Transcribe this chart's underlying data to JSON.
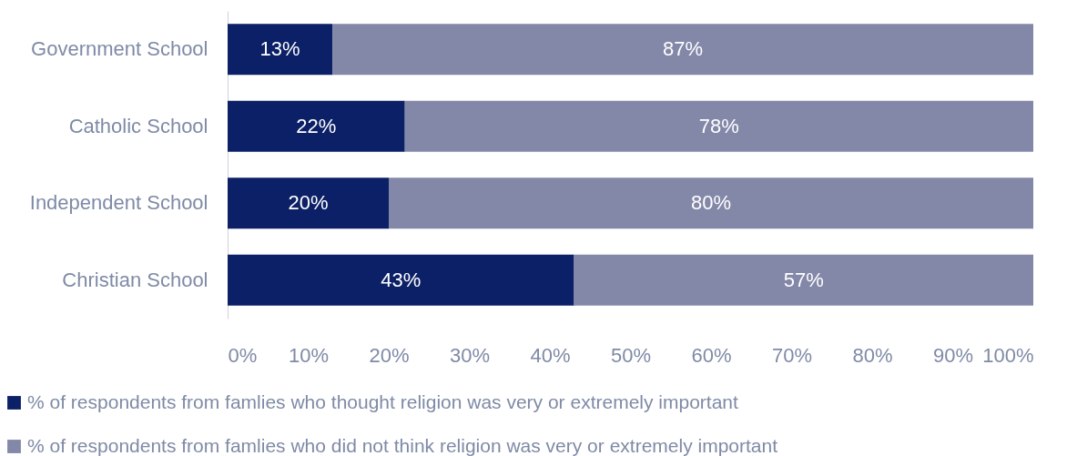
{
  "chart_data": {
    "type": "bar",
    "orientation": "horizontal",
    "stacked": true,
    "categories": [
      "Government School",
      "Catholic School",
      "Independent School",
      "Christian School"
    ],
    "series": [
      {
        "name": "% of respondents from famlies who thought religion was very or extremely important",
        "color": "#0b2066",
        "values": [
          13,
          22,
          20,
          43
        ],
        "value_labels": [
          "13%",
          "22%",
          "20%",
          "43%"
        ]
      },
      {
        "name": "% of respondents from famlies who did not think religion was very or extremely important",
        "color": "#8488a8",
        "values": [
          87,
          78,
          80,
          57
        ],
        "value_labels": [
          "87%",
          "78%",
          "80%",
          "57%"
        ]
      }
    ],
    "xlim": [
      0,
      100
    ],
    "xticks": [
      {
        "value": 0,
        "label": "0%"
      },
      {
        "value": 10,
        "label": "10%"
      },
      {
        "value": 20,
        "label": "20%"
      },
      {
        "value": 30,
        "label": "30%"
      },
      {
        "value": 40,
        "label": "40%"
      },
      {
        "value": 50,
        "label": "50%"
      },
      {
        "value": 60,
        "label": "60%"
      },
      {
        "value": 70,
        "label": "70%"
      },
      {
        "value": 80,
        "label": "80%"
      },
      {
        "value": 90,
        "label": "90%"
      },
      {
        "value": 100,
        "label": "100%"
      }
    ],
    "grid": false,
    "legend": "bottom"
  }
}
